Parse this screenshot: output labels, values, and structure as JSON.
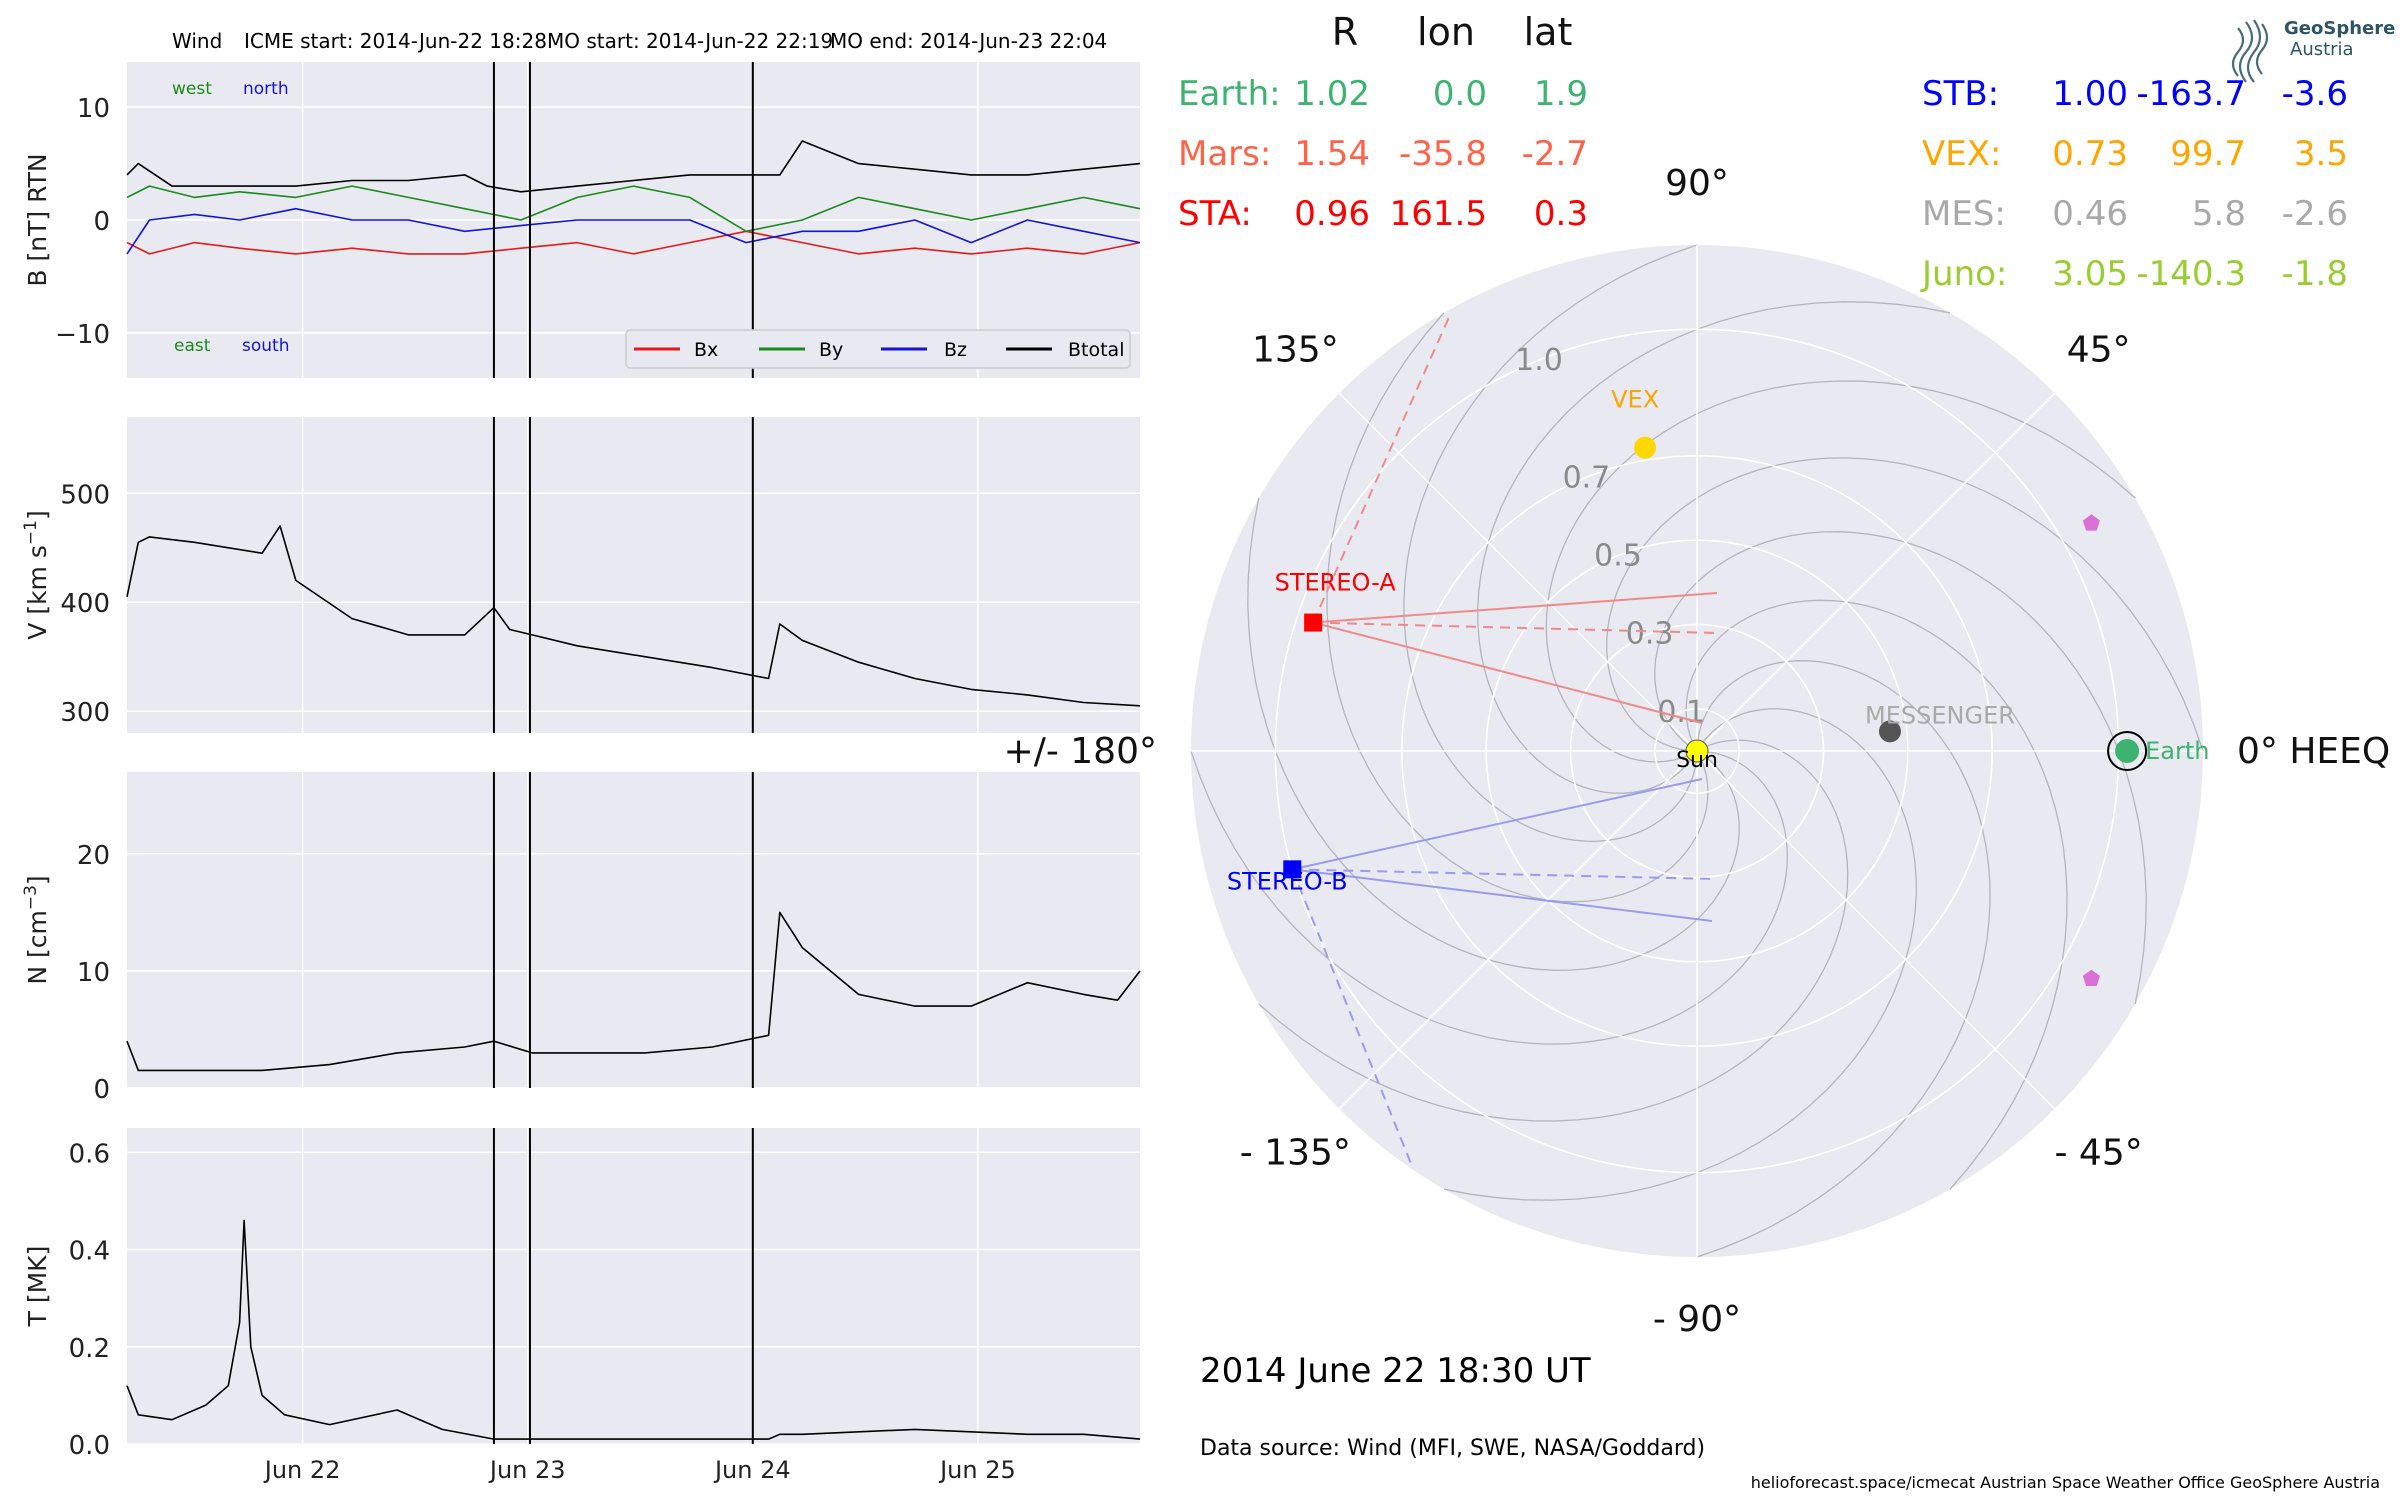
{
  "header": {
    "spacecraft": "Wind",
    "icme_start": "ICME start: 2014-Jun-22 18:28",
    "mo_start": "MO start: 2014-Jun-22 22:19",
    "mo_end": "MO end: 2014-Jun-23 22:04"
  },
  "colors": {
    "bx": "#e31a1c",
    "by": "#1a8a1a",
    "bz": "#1414d8",
    "btotal": "#000000",
    "panel_bg": "#e9e9f1",
    "grid": "#ffffff",
    "earth": "#3cb371",
    "mars": "#ff6347",
    "sta": "#ff0000",
    "stb": "#0000ff",
    "vex": "#ffa500",
    "mes": "#a9a9a9",
    "juno": "#9acd32",
    "sun": "#ffff00",
    "juno_marker": "#da70d6"
  },
  "chart_data": [
    {
      "type": "line",
      "panel": "magnetic field",
      "ylabel": "B [nT] RTN",
      "ylim": [
        -14,
        14
      ],
      "yticks": [
        "10",
        "0",
        "−10"
      ],
      "ytick_values": [
        10,
        0,
        -10
      ],
      "direction_labels": {
        "west": "west",
        "north": "north",
        "east": "east",
        "south": "south"
      },
      "legend_position": "lower-right",
      "series": [
        {
          "name": "Bx",
          "x": [
            0,
            0.1,
            0.3,
            0.5,
            0.75,
            1.0,
            1.25,
            1.5,
            1.75,
            2.0,
            2.25,
            2.5,
            2.75,
            3.0,
            3.25,
            3.5,
            3.75,
            4.0,
            4.25,
            4.5
          ],
          "values": [
            -2,
            -3,
            -2,
            -2.5,
            -3,
            -2.5,
            -3,
            -3,
            -2.5,
            -2,
            -3,
            -2,
            -1,
            -2,
            -3,
            -2.5,
            -3,
            -2.5,
            -3,
            -2
          ]
        },
        {
          "name": "By",
          "x": [
            0,
            0.1,
            0.3,
            0.5,
            0.75,
            1.0,
            1.25,
            1.5,
            1.75,
            2.0,
            2.25,
            2.5,
            2.75,
            3.0,
            3.25,
            3.5,
            3.75,
            4.0,
            4.25,
            4.5
          ],
          "values": [
            2,
            3,
            2,
            2.5,
            2,
            3,
            2,
            1,
            0,
            2,
            3,
            2,
            -1,
            0,
            2,
            1,
            0,
            1,
            2,
            1
          ]
        },
        {
          "name": "Bz",
          "x": [
            0,
            0.1,
            0.3,
            0.5,
            0.75,
            1.0,
            1.25,
            1.5,
            1.75,
            2.0,
            2.25,
            2.5,
            2.75,
            3.0,
            3.25,
            3.5,
            3.75,
            4.0,
            4.25,
            4.5
          ],
          "values": [
            -3,
            0,
            0.5,
            0,
            1,
            0,
            0,
            -1,
            -0.5,
            0,
            0,
            0,
            -2,
            -1,
            -1,
            0,
            -2,
            0,
            -1,
            -2
          ]
        },
        {
          "name": "Btotal",
          "x": [
            0,
            0.05,
            0.2,
            0.5,
            0.75,
            1.0,
            1.25,
            1.5,
            1.6,
            1.75,
            2.0,
            2.25,
            2.5,
            2.9,
            3.0,
            3.25,
            3.5,
            3.75,
            4.0,
            4.25,
            4.5
          ],
          "values": [
            4,
            5,
            3,
            3,
            3,
            3.5,
            3.5,
            4,
            3,
            2.5,
            3,
            3.5,
            4,
            4,
            7,
            5,
            4.5,
            4,
            4,
            4.5,
            5
          ]
        }
      ]
    },
    {
      "type": "line",
      "panel": "velocity",
      "ylabel": "V [km s",
      "ylabel_sup": "−1",
      "ylabel_end": "]",
      "ylim": [
        280,
        570
      ],
      "yticks": [
        "500",
        "400",
        "300"
      ],
      "ytick_values": [
        500,
        400,
        300
      ],
      "series": [
        {
          "name": "V",
          "x": [
            0,
            0.05,
            0.1,
            0.3,
            0.6,
            0.68,
            0.75,
            1.0,
            1.25,
            1.5,
            1.63,
            1.7,
            1.8,
            2.0,
            2.3,
            2.6,
            2.85,
            2.9,
            3.0,
            3.25,
            3.5,
            3.75,
            4.0,
            4.25,
            4.5
          ],
          "values": [
            405,
            455,
            460,
            455,
            445,
            470,
            420,
            385,
            370,
            370,
            395,
            375,
            370,
            360,
            350,
            340,
            330,
            380,
            365,
            345,
            330,
            320,
            315,
            308,
            305
          ]
        }
      ]
    },
    {
      "type": "line",
      "panel": "density",
      "ylabel": "N [cm",
      "ylabel_sup": "−3",
      "ylabel_end": "]",
      "ylim": [
        0,
        27
      ],
      "yticks": [
        "20",
        "10",
        "0"
      ],
      "ytick_values": [
        20,
        10,
        0
      ],
      "series": [
        {
          "name": "N",
          "x": [
            0,
            0.05,
            0.3,
            0.6,
            0.9,
            1.2,
            1.5,
            1.63,
            1.8,
            2.0,
            2.3,
            2.6,
            2.85,
            2.9,
            3.0,
            3.25,
            3.5,
            3.75,
            4.0,
            4.25,
            4.4,
            4.5
          ],
          "values": [
            4,
            1.5,
            1.5,
            1.5,
            2,
            3,
            3.5,
            4,
            3,
            3,
            3,
            3.5,
            4.5,
            15,
            12,
            8,
            7,
            7,
            9,
            8,
            7.5,
            10
          ]
        }
      ]
    },
    {
      "type": "line",
      "panel": "temperature",
      "ylabel": "T [MK]",
      "ylim": [
        0,
        0.65
      ],
      "yticks": [
        "0.6",
        "0.4",
        "0.2",
        "0.0"
      ],
      "ytick_values": [
        0.6,
        0.4,
        0.2,
        0.0
      ],
      "series": [
        {
          "name": "T",
          "x": [
            0,
            0.05,
            0.2,
            0.35,
            0.45,
            0.5,
            0.52,
            0.55,
            0.6,
            0.7,
            0.9,
            1.2,
            1.4,
            1.63,
            1.7,
            2.0,
            2.5,
            2.85,
            2.9,
            3.0,
            3.5,
            4.0,
            4.25,
            4.5
          ],
          "values": [
            0.12,
            0.06,
            0.05,
            0.08,
            0.12,
            0.25,
            0.46,
            0.2,
            0.1,
            0.06,
            0.04,
            0.07,
            0.03,
            0.01,
            0.01,
            0.01,
            0.01,
            0.01,
            0.02,
            0.02,
            0.03,
            0.02,
            0.02,
            0.01
          ]
        }
      ]
    }
  ],
  "time_axis": {
    "x_range_days": [
      0,
      4.5
    ],
    "ticks": [
      {
        "label": "Jun 22",
        "day": 0.78
      },
      {
        "label": "Jun 23",
        "day": 1.78
      },
      {
        "label": "Jun 24",
        "day": 2.78
      },
      {
        "label": "Jun 25",
        "day": 3.78
      }
    ],
    "event_lines_days": [
      1.63,
      1.79,
      2.78
    ]
  },
  "position_table": {
    "headers": [
      "R",
      "lon",
      "lat"
    ],
    "left_rows": [
      {
        "name": "Earth:",
        "r": "1.02",
        "lon": "0.0",
        "lat": "1.9",
        "color_key": "earth"
      },
      {
        "name": "Mars:",
        "r": "1.54",
        "lon": "-35.8",
        "lat": "-2.7",
        "color_key": "mars"
      },
      {
        "name": "STA:",
        "r": "0.96",
        "lon": "161.5",
        "lat": "0.3",
        "color_key": "sta"
      }
    ],
    "right_rows": [
      {
        "name": "STB:",
        "r": "1.00",
        "lon": "-163.7",
        "lat": "-3.6",
        "color_key": "stb"
      },
      {
        "name": "VEX:",
        "r": "0.73",
        "lon": "99.7",
        "lat": "3.5",
        "color_key": "vex"
      },
      {
        "name": "MES:",
        "r": "0.46",
        "lon": "5.8",
        "lat": "-2.6",
        "color_key": "mes"
      },
      {
        "name": "Juno:",
        "r": "3.05",
        "lon": "-140.3",
        "lat": "-1.8",
        "color_key": "juno"
      }
    ]
  },
  "polar_plot": {
    "angle_labels": {
      "a0": "0° HEEQ",
      "a45": "45°",
      "a90": "90°",
      "a135": "135°",
      "a180": "+/- 180°",
      "am45": "- 45°",
      "am90": "- 90°",
      "am135": "- 135°"
    },
    "radial_ticks": [
      "0.1",
      "0.3",
      "0.5",
      "0.7",
      "1.0"
    ],
    "radial_max_au": 1.2,
    "bodies": [
      {
        "label": "Sun",
        "r_au": 0.0,
        "lon_deg": 0
      },
      {
        "label": "Earth",
        "r_au": 1.02,
        "lon_deg": 0.0
      },
      {
        "label": "MESSENGER",
        "r_au": 0.46,
        "lon_deg": 5.8
      },
      {
        "label": "VEX",
        "r_au": 0.73,
        "lon_deg": 99.7
      },
      {
        "label": "STEREO-A",
        "r_au": 0.96,
        "lon_deg": 161.5
      },
      {
        "label": "STEREO-B",
        "r_au": 1.0,
        "lon_deg": -163.7
      }
    ],
    "juno_direction_markers_lon_deg": [
      30,
      -30
    ]
  },
  "timestamp": "2014 June 22  18:30 UT",
  "data_source": "Data source: Wind (MFI, SWE, NASA/Goddard)",
  "footer": "helioforecast.space/icmecat   Austrian Space Weather Office   GeoSphere Austria",
  "logo": {
    "name": "GeoSphere",
    "sub": "Austria"
  }
}
